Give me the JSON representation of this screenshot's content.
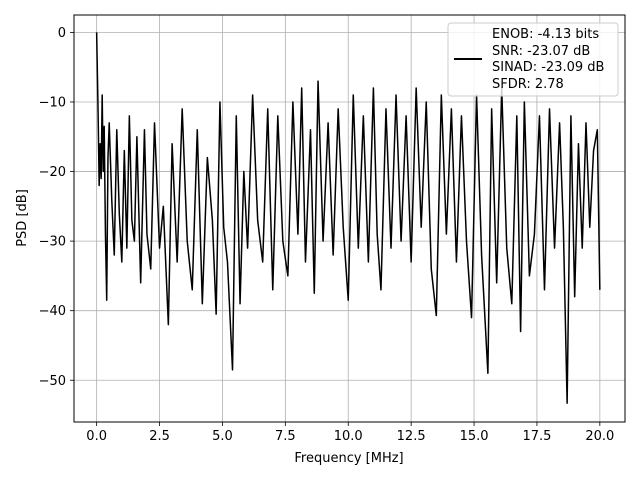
{
  "chart_data": {
    "type": "line",
    "title": "",
    "xlabel": "Frequency [MHz]",
    "ylabel": "PSD [dB]",
    "xlim": [
      -0.9,
      21.0
    ],
    "ylim": [
      -56,
      2.5
    ],
    "x_ticks": [
      0.0,
      2.5,
      5.0,
      7.5,
      10.0,
      12.5,
      15.0,
      17.5,
      20.0
    ],
    "x_tick_labels": [
      "0.0",
      "2.5",
      "5.0",
      "7.5",
      "10.0",
      "12.5",
      "15.0",
      "17.5",
      "20.0"
    ],
    "y_ticks": [
      0,
      -10,
      -20,
      -30,
      -40,
      -50
    ],
    "y_tick_labels": [
      "0",
      "−10",
      "−20",
      "−30",
      "−40",
      "−50"
    ],
    "grid": true,
    "legend_position": "top-right",
    "legend": {
      "lines": [
        "ENOB: -4.13 bits",
        "SNR: -23.07 dB",
        "SINAD: -23.09 dB",
        "SFDR: 2.78"
      ]
    },
    "series": [
      {
        "color": "#000000",
        "points": [
          [
            0.0,
            0.0
          ],
          [
            0.03,
            -6
          ],
          [
            0.06,
            -12
          ],
          [
            0.1,
            -22
          ],
          [
            0.14,
            -16
          ],
          [
            0.18,
            -21
          ],
          [
            0.22,
            -9
          ],
          [
            0.26,
            -20
          ],
          [
            0.3,
            -13.5
          ],
          [
            0.35,
            -29
          ],
          [
            0.4,
            -38.5
          ],
          [
            0.45,
            -18
          ],
          [
            0.5,
            -13
          ],
          [
            0.6,
            -24
          ],
          [
            0.7,
            -32
          ],
          [
            0.8,
            -14
          ],
          [
            0.9,
            -26
          ],
          [
            1.0,
            -33
          ],
          [
            1.1,
            -17
          ],
          [
            1.2,
            -31
          ],
          [
            1.3,
            -12
          ],
          [
            1.4,
            -27
          ],
          [
            1.5,
            -30
          ],
          [
            1.6,
            -15
          ],
          [
            1.75,
            -36
          ],
          [
            1.9,
            -14
          ],
          [
            2.0,
            -29
          ],
          [
            2.15,
            -34
          ],
          [
            2.3,
            -13
          ],
          [
            2.5,
            -31
          ],
          [
            2.65,
            -25
          ],
          [
            2.85,
            -42
          ],
          [
            3.0,
            -16
          ],
          [
            3.2,
            -33
          ],
          [
            3.4,
            -11
          ],
          [
            3.6,
            -30
          ],
          [
            3.8,
            -37
          ],
          [
            4.0,
            -14
          ],
          [
            4.2,
            -39
          ],
          [
            4.4,
            -18
          ],
          [
            4.6,
            -27
          ],
          [
            4.75,
            -40.5
          ],
          [
            4.9,
            -10
          ],
          [
            5.05,
            -28
          ],
          [
            5.2,
            -33
          ],
          [
            5.4,
            -48.5
          ],
          [
            5.55,
            -12
          ],
          [
            5.7,
            -39
          ],
          [
            5.85,
            -20
          ],
          [
            6.0,
            -31
          ],
          [
            6.2,
            -9
          ],
          [
            6.4,
            -27
          ],
          [
            6.6,
            -33
          ],
          [
            6.8,
            -11
          ],
          [
            7.0,
            -37
          ],
          [
            7.2,
            -12
          ],
          [
            7.4,
            -30
          ],
          [
            7.6,
            -35
          ],
          [
            7.8,
            -10
          ],
          [
            8.0,
            -29
          ],
          [
            8.15,
            -8
          ],
          [
            8.3,
            -33
          ],
          [
            8.5,
            -14
          ],
          [
            8.65,
            -37.5
          ],
          [
            8.8,
            -7
          ],
          [
            9.0,
            -30
          ],
          [
            9.2,
            -13
          ],
          [
            9.4,
            -32
          ],
          [
            9.6,
            -11
          ],
          [
            9.8,
            -28
          ],
          [
            10.0,
            -38.5
          ],
          [
            10.2,
            -9
          ],
          [
            10.4,
            -31
          ],
          [
            10.6,
            -12
          ],
          [
            10.8,
            -33
          ],
          [
            11.0,
            -8
          ],
          [
            11.15,
            -29
          ],
          [
            11.3,
            -37
          ],
          [
            11.5,
            -11
          ],
          [
            11.7,
            -31
          ],
          [
            11.9,
            -9
          ],
          [
            12.1,
            -30
          ],
          [
            12.3,
            -12
          ],
          [
            12.5,
            -33
          ],
          [
            12.7,
            -8
          ],
          [
            12.9,
            -28
          ],
          [
            13.1,
            -10
          ],
          [
            13.3,
            -34
          ],
          [
            13.5,
            -40.7
          ],
          [
            13.7,
            -9
          ],
          [
            13.9,
            -29
          ],
          [
            14.1,
            -11
          ],
          [
            14.3,
            -33
          ],
          [
            14.5,
            -12
          ],
          [
            14.7,
            -30
          ],
          [
            14.9,
            -41
          ],
          [
            15.1,
            -9
          ],
          [
            15.3,
            -32
          ],
          [
            15.55,
            -49
          ],
          [
            15.7,
            -11
          ],
          [
            15.9,
            -36
          ],
          [
            16.1,
            -8
          ],
          [
            16.3,
            -31
          ],
          [
            16.5,
            -39
          ],
          [
            16.7,
            -12
          ],
          [
            16.85,
            -43
          ],
          [
            17.0,
            -10
          ],
          [
            17.2,
            -35
          ],
          [
            17.4,
            -29
          ],
          [
            17.6,
            -12
          ],
          [
            17.8,
            -37
          ],
          [
            18.0,
            -11
          ],
          [
            18.2,
            -31
          ],
          [
            18.4,
            -13
          ],
          [
            18.55,
            -28
          ],
          [
            18.7,
            -53.3
          ],
          [
            18.85,
            -12
          ],
          [
            19.0,
            -38
          ],
          [
            19.15,
            -16
          ],
          [
            19.3,
            -31
          ],
          [
            19.45,
            -13
          ],
          [
            19.6,
            -28
          ],
          [
            19.75,
            -17
          ],
          [
            19.9,
            -14
          ],
          [
            20.0,
            -37
          ]
        ]
      }
    ]
  }
}
